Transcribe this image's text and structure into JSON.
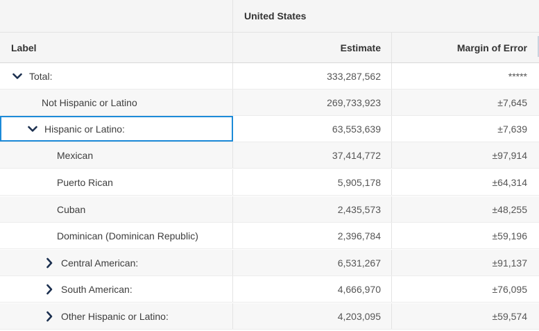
{
  "header": {
    "geo_label": "United States",
    "label_col": "Label",
    "estimate_col": "Estimate",
    "moe_col": "Margin of Error"
  },
  "rows": [
    {
      "label": "Total:",
      "estimate": "333,287,562",
      "moe": "*****",
      "icon": "chevron-down-icon"
    },
    {
      "label": "Not Hispanic or Latino",
      "estimate": "269,733,923",
      "moe": "±7,645"
    },
    {
      "label": "Hispanic or Latino:",
      "estimate": "63,553,639",
      "moe": "±7,639",
      "icon": "chevron-down-icon",
      "focused": true
    },
    {
      "label": "Mexican",
      "estimate": "37,414,772",
      "moe": "±97,914"
    },
    {
      "label": "Puerto Rican",
      "estimate": "5,905,178",
      "moe": "±64,314"
    },
    {
      "label": "Cuban",
      "estimate": "2,435,573",
      "moe": "±48,255"
    },
    {
      "label": "Dominican (Dominican Republic)",
      "estimate": "2,396,784",
      "moe": "±59,196"
    },
    {
      "label": "Central American:",
      "estimate": "6,531,267",
      "moe": "±91,137",
      "icon": "chevron-right-icon"
    },
    {
      "label": "South American:",
      "estimate": "4,666,970",
      "moe": "±76,095",
      "icon": "chevron-right-icon"
    },
    {
      "label": "Other Hispanic or Latino:",
      "estimate": "4,203,095",
      "moe": "±59,574",
      "icon": "chevron-right-icon"
    }
  ],
  "colors": {
    "chevron": "#1b2f4f",
    "focus_outline": "#1c8ad8",
    "header_bg": "#f5f5f5"
  }
}
